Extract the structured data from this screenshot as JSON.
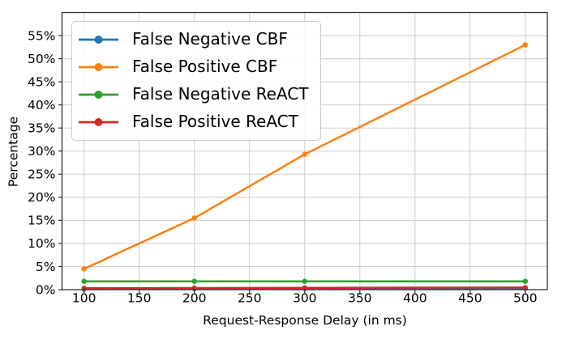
{
  "figure": {
    "background": "#ffffff",
    "text_color": "#000000",
    "grid_color": "#cdcdcd",
    "spine_color": "#2f2f2f"
  },
  "chart_data": {
    "type": "line",
    "title": "",
    "xlabel": "Request-Response Delay (in ms)",
    "ylabel": "Percentage",
    "x": [
      100,
      200,
      300,
      500
    ],
    "series": [
      {
        "name": "False Negative CBF",
        "color": "#1f77b4",
        "values": [
          0.15,
          0.2,
          0.25,
          0.3
        ]
      },
      {
        "name": "False Positive CBF",
        "color": "#ff7f0e",
        "values": [
          4.5,
          15.5,
          29.3,
          53.0
        ]
      },
      {
        "name": "False Negative ReACT",
        "color": "#2ca02c",
        "values": [
          1.8,
          1.8,
          1.8,
          1.8
        ]
      },
      {
        "name": "False Positive ReACT",
        "color": "#d62728",
        "values": [
          0.3,
          0.35,
          0.4,
          0.45
        ]
      }
    ],
    "xlim": [
      80,
      520
    ],
    "ylim": [
      0,
      60
    ],
    "xticks": {
      "values": [
        100,
        150,
        200,
        250,
        300,
        350,
        400,
        450,
        500
      ],
      "labels": [
        "100",
        "150",
        "200",
        "250",
        "300",
        "350",
        "400",
        "450",
        "500"
      ]
    },
    "yticks": {
      "values": [
        0,
        5,
        10,
        15,
        20,
        25,
        30,
        35,
        40,
        45,
        50,
        55
      ],
      "labels": [
        "0%",
        "5%",
        "10%",
        "15%",
        "20%",
        "25%",
        "30%",
        "35%",
        "40%",
        "45%",
        "50%",
        "55%"
      ]
    },
    "grid": true,
    "marker": "circle",
    "legend": {
      "position": "upper-left",
      "entries": [
        "False Negative CBF",
        "False Positive CBF",
        "False Negative ReACT",
        "False Positive ReACT"
      ]
    }
  }
}
